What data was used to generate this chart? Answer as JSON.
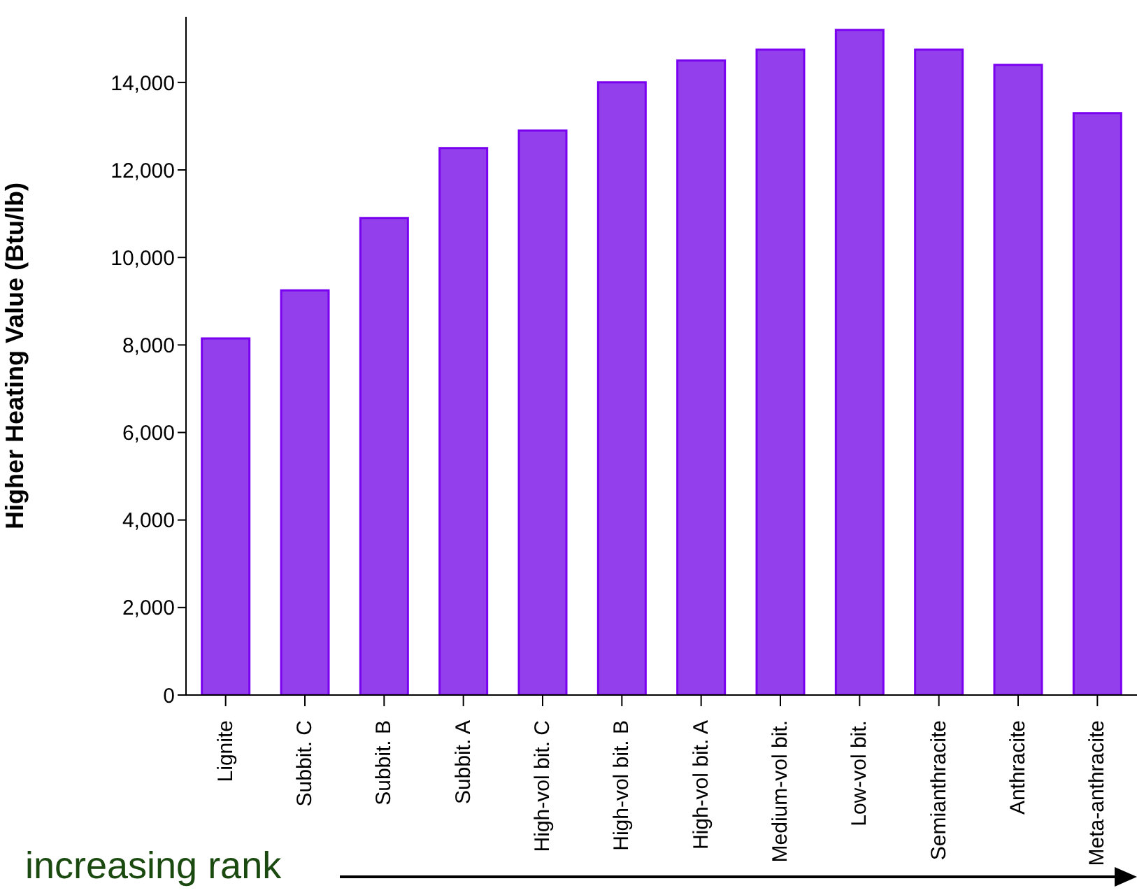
{
  "chart_data": {
    "type": "bar",
    "ylabel": "Higher Heating Value (Btu/lb)",
    "categories": [
      "Lignite",
      "Subbit. C",
      "Subbit. B",
      "Subbit. A",
      "High-vol bit. C",
      "High-vol bit. B",
      "High-vol bit. A",
      "Medium-vol bit.",
      "Low-vol bit.",
      "Semianthracite",
      "Anthracite",
      "Meta-anthracite"
    ],
    "values": [
      8150,
      9250,
      10900,
      12500,
      12900,
      14000,
      14500,
      14750,
      15200,
      14750,
      14400,
      13300
    ],
    "color": "#9340ec",
    "ylim": [
      0,
      15500
    ],
    "yticks": [
      0,
      {
        "value": 2000,
        "label": "2,000"
      },
      {
        "value": 4000,
        "label": "4,000"
      },
      {
        "value": 6000,
        "label": "6,000"
      },
      {
        "value": 8000,
        "label": "8,000"
      },
      {
        "value": 10000,
        "label": "10,000"
      },
      {
        "value": 12000,
        "label": "12,000"
      },
      {
        "value": 14000,
        "label": "14,000"
      }
    ],
    "annotations": [
      "increasing rank"
    ]
  }
}
